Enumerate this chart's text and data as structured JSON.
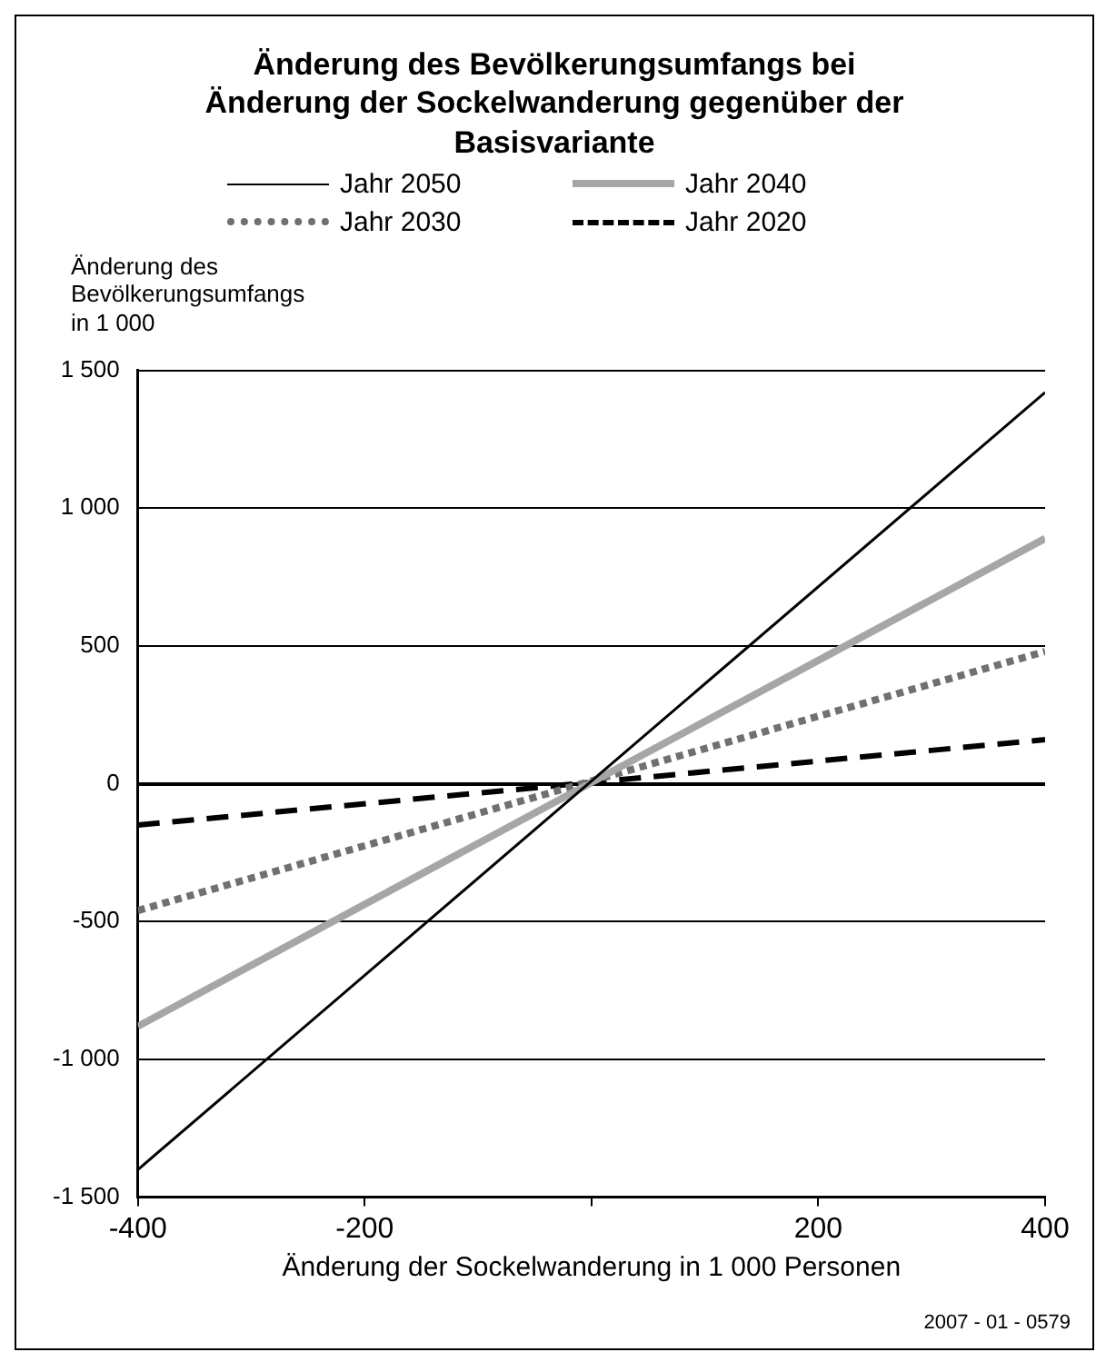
{
  "chart_data": {
    "type": "line",
    "title": "Änderung des Bevölkerungsumfangs bei Änderung der Sockelwanderung  gegenüber der Basisvariante",
    "xlabel": "Änderung der Sockelwanderung in 1 000 Personen",
    "ylabel": "Änderung des Bevölkerungsumfangs in 1 000",
    "x": [
      -400,
      400
    ],
    "series": [
      {
        "name": "Jahr 2050",
        "color": "#000000",
        "values": [
          -1400,
          1420
        ],
        "line_style": "solid"
      },
      {
        "name": "Jahr 2040",
        "color": "#a6a6a6",
        "values": [
          -880,
          890
        ],
        "line_style": "solid"
      },
      {
        "name": "Jahr 2030",
        "color": "#707070",
        "values": [
          -460,
          480
        ],
        "line_style": "dotted"
      },
      {
        "name": "Jahr 2020",
        "color": "#000000",
        "values": [
          -150,
          160
        ],
        "line_style": "dashed"
      }
    ],
    "xlim": [
      -400,
      400
    ],
    "xticks": [
      -400,
      -200,
      {
        "value": 0,
        "label": null
      },
      200,
      400
    ],
    "ylim": [
      -1500,
      1500
    ],
    "yticks": [
      {
        "value": -1500,
        "label": "-1 500"
      },
      {
        "value": -1000,
        "label": "-1 000"
      },
      -500,
      0,
      500,
      {
        "value": 1000,
        "label": "1 000"
      },
      {
        "value": 1500,
        "label": "1 500"
      }
    ],
    "grid": "y",
    "legend": "top",
    "marker": "none",
    "annotations": [
      "2007 - 01 - 0579"
    ]
  }
}
